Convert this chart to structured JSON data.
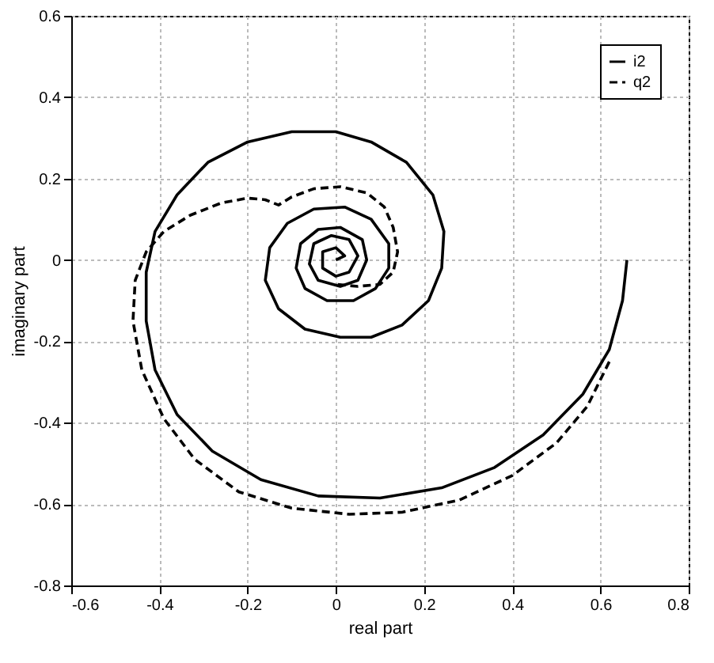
{
  "chart_data": {
    "type": "line",
    "xlabel": "real part",
    "ylabel": "imaginary part",
    "xlim": [
      -0.6,
      0.8
    ],
    "ylim": [
      -0.8,
      0.6
    ],
    "xticks": [
      -0.6,
      -0.4,
      -0.2,
      0,
      0.2,
      0.4,
      0.6,
      0.8
    ],
    "yticks": [
      -0.8,
      -0.6,
      -0.4,
      -0.2,
      0,
      0.2,
      0.4,
      0.6
    ],
    "grid": true,
    "legend": "top right",
    "marker": "none",
    "series": [
      {
        "name": "i2",
        "color": "#000000",
        "line_style": "solid",
        "x": [
          0.66,
          0.65,
          0.62,
          0.56,
          0.47,
          0.36,
          0.24,
          0.1,
          -0.04,
          -0.17,
          -0.28,
          -0.36,
          -0.41,
          -0.43,
          -0.43,
          -0.41,
          -0.36,
          -0.29,
          -0.2,
          -0.1,
          0,
          0.08,
          0.16,
          0.22,
          0.245,
          0.24,
          0.21,
          0.15,
          0.08,
          0.01,
          -0.07,
          -0.13,
          -0.16,
          -0.15,
          -0.11,
          -0.05,
          0.02,
          0.08,
          0.12,
          0.12,
          0.09,
          0.04,
          -0.02,
          -0.07,
          -0.09,
          -0.08,
          -0.04,
          0.01,
          0.06,
          0.07,
          0.05,
          0.01,
          -0.04,
          -0.06,
          -0.05,
          -0.01,
          0.03,
          0.05,
          0.03,
          0,
          -0.03,
          -0.03,
          0,
          0.02,
          0
        ],
        "values": [
          0,
          -0.1,
          -0.22,
          -0.33,
          -0.43,
          -0.51,
          -0.56,
          -0.585,
          -0.58,
          -0.54,
          -0.47,
          -0.38,
          -0.27,
          -0.15,
          -0.03,
          0.07,
          0.16,
          0.24,
          0.29,
          0.315,
          0.315,
          0.29,
          0.24,
          0.16,
          0.07,
          -0.02,
          -0.1,
          -0.16,
          -0.19,
          -0.19,
          -0.17,
          -0.12,
          -0.05,
          0.03,
          0.09,
          0.125,
          0.13,
          0.1,
          0.04,
          -0.02,
          -0.07,
          -0.1,
          -0.1,
          -0.07,
          -0.02,
          0.04,
          0.075,
          0.08,
          0.05,
          0,
          -0.05,
          -0.065,
          -0.05,
          -0.01,
          0.04,
          0.06,
          0.05,
          0.01,
          -0.03,
          -0.04,
          -0.02,
          0.02,
          0.03,
          0.01,
          0
        ]
      },
      {
        "name": "q2",
        "color": "#000000",
        "line_style": "dashed",
        "x": [
          0.62,
          0.57,
          0.5,
          0.4,
          0.28,
          0.15,
          0.03,
          -0.1,
          -0.22,
          -0.32,
          -0.39,
          -0.44,
          -0.46,
          -0.455,
          -0.43,
          -0.39,
          -0.33,
          -0.26,
          -0.2,
          -0.16,
          -0.13,
          -0.1,
          -0.05,
          0.01,
          0.07,
          0.11,
          0.13,
          0.14,
          0.13,
          0.1,
          0.05,
          0
        ],
        "values": [
          -0.25,
          -0.36,
          -0.45,
          -0.53,
          -0.59,
          -0.62,
          -0.625,
          -0.61,
          -0.57,
          -0.49,
          -0.39,
          -0.27,
          -0.15,
          -0.05,
          0.02,
          0.07,
          0.11,
          0.14,
          0.152,
          0.148,
          0.135,
          0.155,
          0.175,
          0.18,
          0.165,
          0.13,
          0.08,
          0.02,
          -0.03,
          -0.06,
          -0.065,
          -0.06
        ]
      }
    ]
  }
}
